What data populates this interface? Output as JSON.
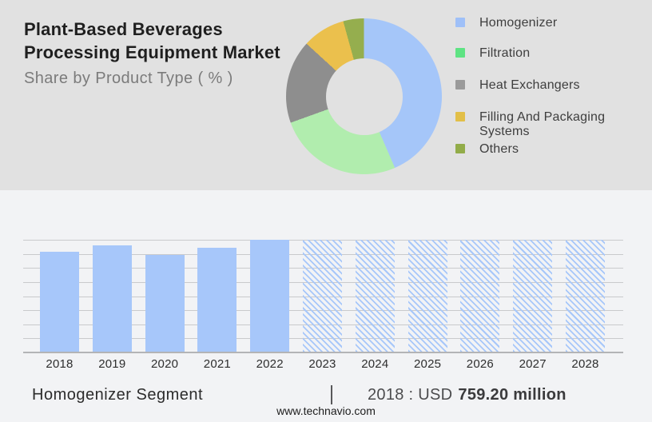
{
  "header": {
    "title_line1": "Plant-Based Beverages",
    "title_line2": "Processing Equipment Market",
    "subtitle": "Share by Product Type ( % )"
  },
  "footer": {
    "segment_label": "Homogenizer Segment",
    "stat_prefix": "2018 : USD",
    "stat_value": "759.20 million",
    "site_url": "www.technavio.com"
  },
  "colors": {
    "top_bg": "#e1e1e1",
    "bottom_bg": "#f2f3f5",
    "bar_fill": "#a7c7fa",
    "gridline": "#c9cacc",
    "baseline": "#b3b4b6"
  },
  "chart_data": [
    {
      "type": "pie",
      "subtype": "donut",
      "title": "Share by Product Type ( % )",
      "legend_position": "right",
      "segments": [
        {
          "label": "Homogenizer",
          "pct": 43.5,
          "color": "#a5c6f9",
          "legend_color": "#9fc0f8"
        },
        {
          "label": "Filtration",
          "pct": 26.0,
          "color": "#b1edae",
          "legend_color": "#5ee383"
        },
        {
          "label": "Heat Exchangers",
          "pct": 17.3,
          "color": "#8e8e8e",
          "legend_color": "#9a9a9a"
        },
        {
          "label": "Filling And Packaging Systems",
          "pct": 8.9,
          "color": "#ebc04d",
          "legend_color": "#e2bf48"
        },
        {
          "label": "Others",
          "pct": 4.3,
          "color": "#95ae4e",
          "legend_color": "#92ac49"
        }
      ]
    },
    {
      "type": "bar",
      "title": "Homogenizer Segment",
      "unit": "USD million",
      "annotation": "2018 : USD 759.20 million",
      "known_value": {
        "year": "2018",
        "value_musd": 759.2
      },
      "grid": "horizontal, 9 lines, no y-axis tick labels",
      "bars": [
        {
          "year": "2018",
          "height_pct": 89.4,
          "est_value_musd": 759.2,
          "forecast": false
        },
        {
          "year": "2019",
          "height_pct": 95.0,
          "est_value_musd": 807,
          "forecast": false
        },
        {
          "year": "2020",
          "height_pct": 86.5,
          "est_value_musd": 735,
          "forecast": false
        },
        {
          "year": "2021",
          "height_pct": 92.9,
          "est_value_musd": 789,
          "forecast": false
        },
        {
          "year": "2022",
          "height_pct": 100,
          "est_value_musd": 850,
          "forecast": false
        },
        {
          "year": "2023",
          "height_pct": 100,
          "forecast": true
        },
        {
          "year": "2024",
          "height_pct": 100,
          "forecast": true
        },
        {
          "year": "2025",
          "height_pct": 100,
          "forecast": true
        },
        {
          "year": "2026",
          "height_pct": 100,
          "forecast": true
        },
        {
          "year": "2027",
          "height_pct": 100,
          "forecast": true
        },
        {
          "year": "2028",
          "height_pct": 100,
          "forecast": true
        }
      ]
    }
  ]
}
